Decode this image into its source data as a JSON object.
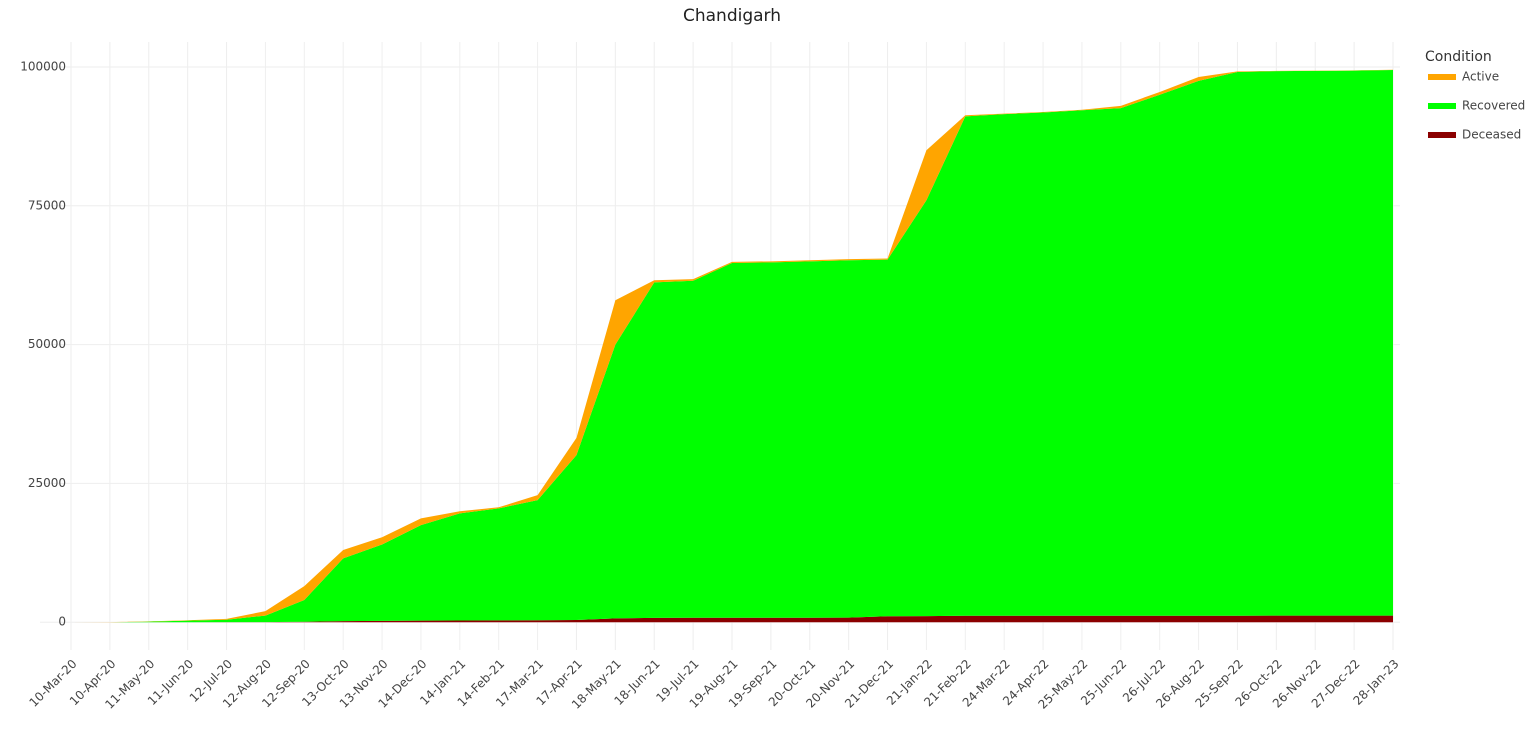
{
  "chart_data": {
    "type": "stacked_area",
    "title": "Chandigarh",
    "legend_title": "Condition",
    "legend_position": "right",
    "grid": true,
    "categories": [
      "10-Mar-20",
      "10-Apr-20",
      "11-May-20",
      "11-Jun-20",
      "12-Jul-20",
      "12-Aug-20",
      "12-Sep-20",
      "13-Oct-20",
      "13-Nov-20",
      "14-Dec-20",
      "14-Jan-21",
      "14-Feb-21",
      "17-Mar-21",
      "17-Apr-21",
      "18-May-21",
      "18-Jun-21",
      "19-Jul-21",
      "19-Aug-21",
      "19-Sep-21",
      "20-Oct-21",
      "20-Nov-21",
      "21-Dec-21",
      "21-Jan-22",
      "21-Feb-22",
      "24-Mar-22",
      "24-Apr-22",
      "25-May-22",
      "25-Jun-22",
      "26-Jul-22",
      "26-Aug-22",
      "25-Sep-22",
      "26-Oct-22",
      "26-Nov-22",
      "27-Dec-22",
      "28-Jan-23"
    ],
    "ylim": [
      -5000,
      104500
    ],
    "yticks": [
      0,
      25000,
      50000,
      75000,
      100000
    ],
    "series": [
      {
        "name": "Deceased",
        "color": "#8b0000",
        "values": [
          0,
          0,
          0,
          5,
          10,
          25,
          80,
          200,
          240,
          300,
          320,
          330,
          360,
          400,
          700,
          780,
          800,
          810,
          815,
          818,
          820,
          1078,
          1100,
          1160,
          1165,
          1165,
          1165,
          1165,
          1170,
          1175,
          1180,
          1185,
          1185,
          1185,
          1185
        ]
      },
      {
        "name": "Recovered",
        "color": "#00ff00",
        "values": [
          0,
          0,
          100,
          295,
          440,
          1175,
          3920,
          11300,
          13760,
          17200,
          19280,
          20170,
          21640,
          29700,
          49300,
          60420,
          60700,
          63890,
          63985,
          64182,
          64380,
          64222,
          74900,
          89940,
          90335,
          90635,
          91035,
          91435,
          93830,
          96325,
          97920,
          98065,
          98115,
          98165,
          98265
        ]
      },
      {
        "name": "Active",
        "color": "#ffa500",
        "values": [
          0,
          20,
          50,
          50,
          150,
          800,
          2500,
          1500,
          1300,
          1200,
          400,
          200,
          900,
          3100,
          8000,
          400,
          300,
          200,
          200,
          200,
          200,
          200,
          9000,
          200,
          100,
          100,
          100,
          400,
          500,
          700,
          100,
          50,
          50,
          50,
          50
        ]
      }
    ]
  }
}
